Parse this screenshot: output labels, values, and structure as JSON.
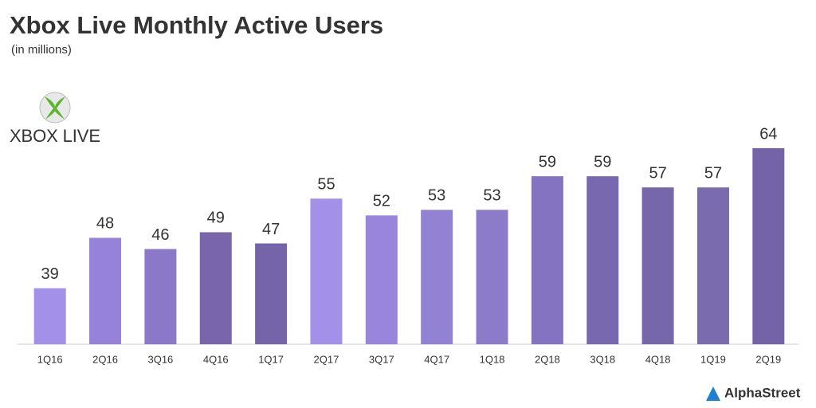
{
  "chart_data": {
    "type": "bar",
    "title": "Xbox Live Monthly Active Users",
    "subtitle": "(in millions)",
    "logo_text": "XBOX LIVE",
    "source": "AlphaStreet",
    "categories": [
      "1Q16",
      "2Q16",
      "3Q16",
      "4Q16",
      "1Q17",
      "2Q17",
      "3Q17",
      "4Q17",
      "1Q18",
      "2Q18",
      "3Q18",
      "4Q18",
      "1Q19",
      "2Q19"
    ],
    "values": [
      39,
      48,
      46,
      49,
      47,
      55,
      52,
      53,
      53,
      59,
      59,
      57,
      57,
      64
    ],
    "colors": [
      "#a390e8",
      "#9682d8",
      "#8b78c9",
      "#7865ab",
      "#7664a8",
      "#a390e8",
      "#9985dc",
      "#9282d3",
      "#8c7bc9",
      "#8473c0",
      "#7868af",
      "#7666aa",
      "#7a6aae",
      "#7563a8"
    ],
    "ylim": [
      29,
      64
    ]
  }
}
